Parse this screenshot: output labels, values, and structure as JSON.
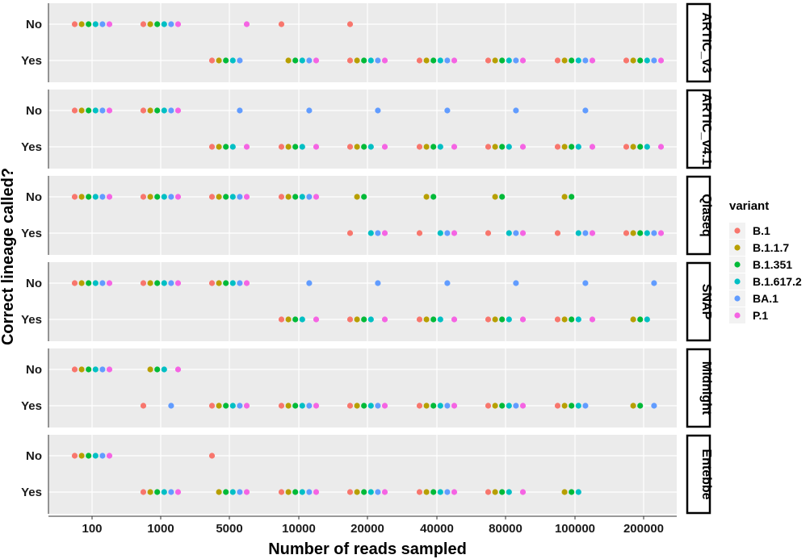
{
  "chart_data": {
    "type": "scatter",
    "xlabel": "Number of reads sampled",
    "ylabel": "Correct lineage called?",
    "x_categories": [
      "100",
      "1000",
      "5000",
      "10000",
      "20000",
      "40000",
      "80000",
      "100000",
      "200000"
    ],
    "y_categories": [
      "No",
      "Yes"
    ],
    "legend": {
      "title": "variant",
      "position": "right",
      "entries": [
        {
          "name": "B.1",
          "color": "#F8766D"
        },
        {
          "name": "B.1.1.7",
          "color": "#B79F00"
        },
        {
          "name": "B.1.351",
          "color": "#00BA38"
        },
        {
          "name": "B.1.617.2",
          "color": "#00BFC4"
        },
        {
          "name": "BA.1",
          "color": "#619CFF"
        },
        {
          "name": "P.1",
          "color": "#F564E3"
        }
      ]
    },
    "panel_background": "#EBEBEB",
    "grid": true,
    "panels": [
      {
        "name": "ARTIC_v3",
        "No": {
          "100": [
            "B.1",
            "B.1.1.7",
            "B.1.351",
            "B.1.617.2",
            "BA.1",
            "P.1"
          ],
          "1000": [
            "B.1",
            "B.1.1.7",
            "B.1.351",
            "B.1.617.2",
            "BA.1",
            "P.1"
          ],
          "5000": [
            "P.1"
          ],
          "10000": [
            "B.1"
          ],
          "20000": [
            "B.1"
          ]
        },
        "Yes": {
          "5000": [
            "B.1",
            "B.1.1.7",
            "B.1.351",
            "B.1.617.2",
            "BA.1"
          ],
          "10000": [
            "B.1.1.7",
            "B.1.351",
            "B.1.617.2",
            "BA.1",
            "P.1"
          ],
          "20000": [
            "B.1",
            "B.1.1.7",
            "B.1.351",
            "B.1.617.2",
            "BA.1",
            "P.1"
          ],
          "40000": [
            "B.1",
            "B.1.1.7",
            "B.1.351",
            "B.1.617.2",
            "BA.1",
            "P.1"
          ],
          "80000": [
            "B.1",
            "B.1.1.7",
            "B.1.351",
            "B.1.617.2",
            "BA.1",
            "P.1"
          ],
          "100000": [
            "B.1",
            "B.1.1.7",
            "B.1.351",
            "B.1.617.2",
            "BA.1",
            "P.1"
          ],
          "200000": [
            "B.1",
            "B.1.1.7",
            "B.1.351",
            "B.1.617.2",
            "BA.1",
            "P.1"
          ]
        }
      },
      {
        "name": "ARTIC_v4.1",
        "No": {
          "100": [
            "B.1",
            "B.1.1.7",
            "B.1.351",
            "B.1.617.2",
            "BA.1",
            "P.1"
          ],
          "1000": [
            "B.1",
            "B.1.1.7",
            "B.1.351",
            "B.1.617.2",
            "BA.1",
            "P.1"
          ],
          "5000": [
            "BA.1"
          ],
          "10000": [
            "BA.1"
          ],
          "20000": [
            "BA.1"
          ],
          "40000": [
            "BA.1"
          ],
          "80000": [
            "BA.1"
          ],
          "100000": [
            "BA.1"
          ]
        },
        "Yes": {
          "5000": [
            "B.1",
            "B.1.1.7",
            "B.1.351",
            "B.1.617.2",
            "P.1"
          ],
          "10000": [
            "B.1",
            "B.1.1.7",
            "B.1.351",
            "B.1.617.2",
            "P.1"
          ],
          "20000": [
            "B.1",
            "B.1.1.7",
            "B.1.351",
            "B.1.617.2",
            "P.1"
          ],
          "40000": [
            "B.1",
            "B.1.1.7",
            "B.1.351",
            "B.1.617.2",
            "P.1"
          ],
          "80000": [
            "B.1",
            "B.1.1.7",
            "B.1.351",
            "B.1.617.2",
            "P.1"
          ],
          "100000": [
            "B.1",
            "B.1.1.7",
            "B.1.351",
            "B.1.617.2",
            "P.1"
          ],
          "200000": [
            "B.1",
            "B.1.1.7",
            "B.1.351",
            "B.1.617.2",
            "P.1"
          ]
        }
      },
      {
        "name": "Qiaseq",
        "No": {
          "100": [
            "B.1",
            "B.1.1.7",
            "B.1.351",
            "B.1.617.2",
            "BA.1",
            "P.1"
          ],
          "1000": [
            "B.1",
            "B.1.1.7",
            "B.1.351",
            "B.1.617.2",
            "BA.1",
            "P.1"
          ],
          "5000": [
            "B.1",
            "B.1.1.7",
            "B.1.351",
            "B.1.617.2",
            "BA.1",
            "P.1"
          ],
          "10000": [
            "B.1",
            "B.1.1.7",
            "B.1.351",
            "B.1.617.2",
            "BA.1",
            "P.1"
          ],
          "20000": [
            "B.1.1.7",
            "B.1.351"
          ],
          "40000": [
            "B.1.1.7",
            "B.1.351"
          ],
          "80000": [
            "B.1.1.7",
            "B.1.351"
          ],
          "100000": [
            "B.1.1.7",
            "B.1.351"
          ]
        },
        "Yes": {
          "20000": [
            "B.1",
            "B.1.617.2",
            "BA.1",
            "P.1"
          ],
          "40000": [
            "B.1",
            "B.1.617.2",
            "BA.1",
            "P.1"
          ],
          "80000": [
            "B.1",
            "B.1.617.2",
            "BA.1",
            "P.1"
          ],
          "100000": [
            "B.1",
            "B.1.617.2",
            "BA.1",
            "P.1"
          ],
          "200000": [
            "B.1",
            "B.1.1.7",
            "B.1.351",
            "B.1.617.2",
            "BA.1",
            "P.1"
          ]
        }
      },
      {
        "name": "SNAP",
        "No": {
          "100": [
            "B.1",
            "B.1.1.7",
            "B.1.351",
            "B.1.617.2",
            "BA.1",
            "P.1"
          ],
          "1000": [
            "B.1",
            "B.1.1.7",
            "B.1.351",
            "B.1.617.2",
            "BA.1",
            "P.1"
          ],
          "5000": [
            "B.1",
            "B.1.1.7",
            "B.1.351",
            "B.1.617.2",
            "BA.1",
            "P.1"
          ],
          "10000": [
            "BA.1"
          ],
          "20000": [
            "BA.1"
          ],
          "40000": [
            "BA.1"
          ],
          "80000": [
            "BA.1"
          ],
          "100000": [
            "BA.1"
          ],
          "200000": [
            "BA.1"
          ]
        },
        "Yes": {
          "10000": [
            "B.1",
            "B.1.1.7",
            "B.1.351",
            "B.1.617.2",
            "P.1"
          ],
          "20000": [
            "B.1",
            "B.1.1.7",
            "B.1.351",
            "B.1.617.2",
            "P.1"
          ],
          "40000": [
            "B.1",
            "B.1.1.7",
            "B.1.351",
            "B.1.617.2",
            "P.1"
          ],
          "80000": [
            "B.1",
            "B.1.1.7",
            "B.1.351",
            "B.1.617.2",
            "P.1"
          ],
          "100000": [
            "B.1",
            "B.1.1.7",
            "B.1.351",
            "B.1.617.2",
            "P.1"
          ],
          "200000": [
            "B.1.1.7",
            "B.1.351",
            "B.1.617.2"
          ]
        }
      },
      {
        "name": "Midnight",
        "No": {
          "100": [
            "B.1",
            "B.1.1.7",
            "B.1.351",
            "B.1.617.2",
            "BA.1",
            "P.1"
          ],
          "1000": [
            "B.1.1.7",
            "B.1.351",
            "B.1.617.2",
            "P.1"
          ]
        },
        "Yes": {
          "1000": [
            "B.1",
            "BA.1"
          ],
          "5000": [
            "B.1",
            "B.1.1.7",
            "B.1.351",
            "B.1.617.2",
            "BA.1",
            "P.1"
          ],
          "10000": [
            "B.1",
            "B.1.1.7",
            "B.1.351",
            "B.1.617.2",
            "BA.1",
            "P.1"
          ],
          "20000": [
            "B.1",
            "B.1.1.7",
            "B.1.351",
            "B.1.617.2",
            "BA.1",
            "P.1"
          ],
          "40000": [
            "B.1",
            "B.1.1.7",
            "B.1.351",
            "B.1.617.2",
            "BA.1",
            "P.1"
          ],
          "80000": [
            "B.1",
            "B.1.1.7",
            "B.1.351",
            "B.1.617.2",
            "BA.1",
            "P.1"
          ],
          "100000": [
            "B.1",
            "B.1.1.7",
            "B.1.351",
            "B.1.617.2",
            "BA.1"
          ],
          "200000": [
            "B.1.1.7",
            "B.1.351",
            "BA.1"
          ]
        }
      },
      {
        "name": "Entebbe",
        "No": {
          "100": [
            "B.1",
            "B.1.1.7",
            "B.1.351",
            "B.1.617.2",
            "BA.1",
            "P.1"
          ],
          "5000": [
            "B.1"
          ]
        },
        "Yes": {
          "1000": [
            "B.1",
            "B.1.1.7",
            "B.1.351",
            "B.1.617.2",
            "BA.1",
            "P.1"
          ],
          "5000": [
            "B.1.1.7",
            "B.1.351",
            "B.1.617.2",
            "BA.1",
            "P.1"
          ],
          "10000": [
            "B.1",
            "B.1.1.7",
            "B.1.351",
            "B.1.617.2",
            "BA.1",
            "P.1"
          ],
          "20000": [
            "B.1",
            "B.1.1.7",
            "B.1.351",
            "B.1.617.2",
            "BA.1",
            "P.1"
          ],
          "40000": [
            "B.1",
            "B.1.1.7",
            "B.1.351",
            "B.1.617.2",
            "BA.1",
            "P.1"
          ],
          "80000": [
            "B.1",
            "B.1.1.7",
            "B.1.351",
            "B.1.617.2",
            "P.1"
          ],
          "100000": [
            "B.1.1.7",
            "B.1.351",
            "B.1.617.2"
          ]
        }
      }
    ]
  }
}
